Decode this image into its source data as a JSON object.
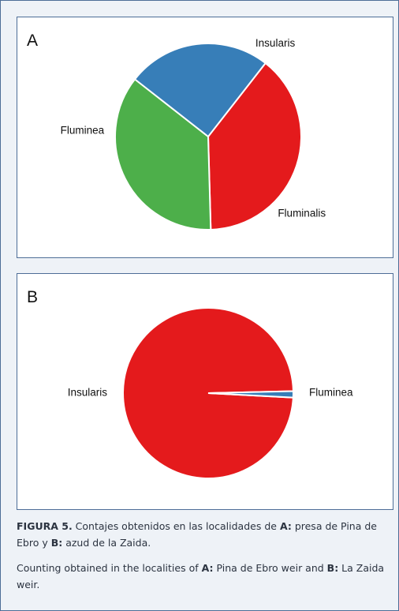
{
  "figure": {
    "caption_es": {
      "prefix": "FIGURA 5.",
      "t1": " Contajes obtenidos en las localidades de ",
      "a": "A:",
      "t2": "  presa de Pina de Ebro y ",
      "b": "B:",
      "t3": " azud de la Zaida."
    },
    "caption_en": {
      "t1": "Counting obtained in the localities of ",
      "a": "A:",
      "t2": " Pina de Ebro weir and ",
      "b": "B:",
      "t3": " La Zaida weir."
    }
  },
  "chart_data": [
    {
      "type": "pie",
      "panel_label": "A",
      "categories": [
        "Insularis",
        "Fluminalis",
        "Fluminea"
      ],
      "values": [
        39,
        36,
        25
      ],
      "colors": [
        "#e41a1c",
        "#4daf4a",
        "#377eb8"
      ],
      "start_angle_deg": -52,
      "label_angles_deg": [
        -63,
        48,
        183
      ]
    },
    {
      "type": "pie",
      "panel_label": "B",
      "categories": [
        "Insularis",
        "Fluminea"
      ],
      "values": [
        98.8,
        1.2
      ],
      "colors": [
        "#e41a1c",
        "#377eb8"
      ],
      "start_angle_deg": 3,
      "label_angles_deg": [
        180,
        0
      ]
    }
  ]
}
